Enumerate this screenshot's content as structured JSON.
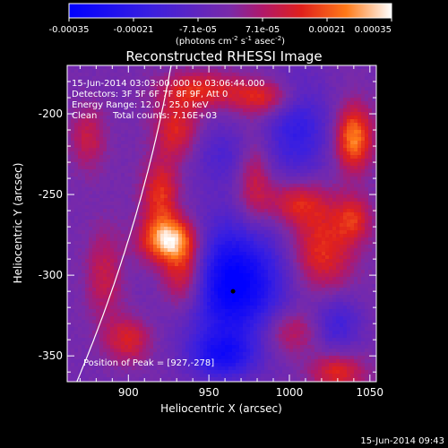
{
  "chart_data": {
    "type": "heatmap",
    "title": "Reconstructed RHESSI Image",
    "xlabel": "Heliocentric X (arcsec)",
    "ylabel": "Heliocentric Y (arcsec)",
    "xlim": [
      862,
      1054
    ],
    "ylim": [
      -366,
      -170
    ],
    "x_ticks": [
      900,
      950,
      1000,
      1050
    ],
    "y_ticks": [
      -200,
      -250,
      -300,
      -350
    ],
    "colorbar": {
      "range": [
        -0.00035,
        0.00035
      ],
      "ticks": [
        "-0.00035",
        "-0.00021",
        "-7.1e-05",
        "7.1e-05",
        "0.00021",
        "0.00035"
      ],
      "label_prefix": "(photons cm",
      "label_exp1": "-2",
      "label_mid": " s",
      "label_exp2": "-1",
      "label_mid2": " asec",
      "label_exp3": "-2",
      "label_suffix": ")"
    },
    "annotations": {
      "time": "15-Jun-2014 03:03:00.000 to 03:06:44.000",
      "detectors": "Detectors: 3F 5F 6F 7F 8F 9F, Att 0",
      "energy": "Energy Range: 12.0 - 25.0 keV",
      "algorithm": "Clean",
      "counts": "Total counts: 7.16E+03",
      "peak": "Position of Peak = [927,-278]"
    },
    "peak": [
      927,
      -278
    ],
    "sources": [
      {
        "x": 965,
        "y": -305,
        "sx": 22,
        "sy": 26,
        "a": -1.0
      },
      {
        "x": 958,
        "y": -350,
        "sx": 14,
        "sy": 10,
        "a": -0.6
      },
      {
        "x": 1005,
        "y": -210,
        "sx": 14,
        "sy": 22,
        "a": -0.5
      },
      {
        "x": 960,
        "y": -225,
        "sx": 16,
        "sy": 14,
        "a": -0.3
      },
      {
        "x": 1030,
        "y": -330,
        "sx": 10,
        "sy": 12,
        "a": -0.4
      },
      {
        "x": 925,
        "y": -278,
        "sx": 12,
        "sy": 10,
        "a": 0.95
      },
      {
        "x": 935,
        "y": -300,
        "sx": 10,
        "sy": 16,
        "a": 0.7
      },
      {
        "x": 920,
        "y": -250,
        "sx": 8,
        "sy": 14,
        "a": 0.55
      },
      {
        "x": 930,
        "y": -210,
        "sx": 10,
        "sy": 14,
        "a": 0.5
      },
      {
        "x": 945,
        "y": -185,
        "sx": 18,
        "sy": 8,
        "a": 0.5
      },
      {
        "x": 985,
        "y": -190,
        "sx": 14,
        "sy": 8,
        "a": 0.5
      },
      {
        "x": 978,
        "y": -240,
        "sx": 8,
        "sy": 20,
        "a": 0.45
      },
      {
        "x": 1005,
        "y": -255,
        "sx": 14,
        "sy": 10,
        "a": 0.5
      },
      {
        "x": 1020,
        "y": -285,
        "sx": 14,
        "sy": 18,
        "a": 0.55
      },
      {
        "x": 1040,
        "y": -215,
        "sx": 8,
        "sy": 14,
        "a": 0.8
      },
      {
        "x": 1040,
        "y": -265,
        "sx": 8,
        "sy": 10,
        "a": 0.45
      },
      {
        "x": 1000,
        "y": -335,
        "sx": 12,
        "sy": 10,
        "a": 0.4
      },
      {
        "x": 1030,
        "y": -360,
        "sx": 12,
        "sy": 8,
        "a": 0.5
      },
      {
        "x": 900,
        "y": -340,
        "sx": 10,
        "sy": 10,
        "a": 0.45
      },
      {
        "x": 885,
        "y": -300,
        "sx": 8,
        "sy": 20,
        "a": 0.35
      },
      {
        "x": 875,
        "y": -215,
        "sx": 8,
        "sy": 14,
        "a": 0.35
      }
    ]
  },
  "footer_date": "15-Jun-2014 09:43"
}
